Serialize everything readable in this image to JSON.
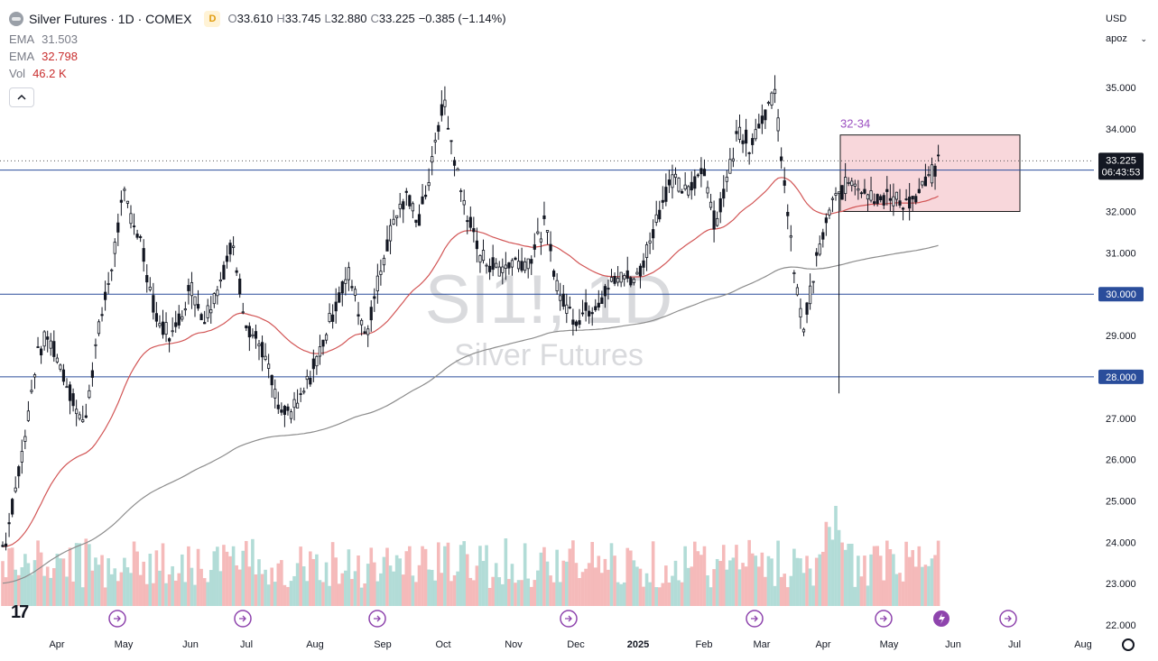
{
  "header": {
    "symbol_title": "Silver Futures · 1D · COMEX",
    "interval_badge": "D",
    "open_label": "O",
    "open": "33.610",
    "high_label": "H",
    "high": "33.745",
    "low_label": "L",
    "low": "32.880",
    "close_label": "C",
    "close": "33.225",
    "change": "−0.385 (−1.14%)"
  },
  "indicators": [
    {
      "name": "EMA",
      "value": "31.503"
    },
    {
      "name": "EMA",
      "value": "32.798"
    },
    {
      "name": "Vol",
      "value": "46.2 K"
    }
  ],
  "currency_select": "USD",
  "scale_select": "apoz",
  "watermark": {
    "symbol": "SI1!, 1D",
    "description": "Silver Futures"
  },
  "logo": "17",
  "colors": {
    "up": "#131722",
    "down": "#131722",
    "ema_fast": "#d25555",
    "ema_slow": "#8c8c8c",
    "hline": "#2a4d9b",
    "box_fill": "#f6c9cf",
    "box_stroke": "#1a1a1a",
    "vol_up": "#9fd3cd",
    "vol_down": "#f3a9a9",
    "box_label": "#9b4fc0"
  },
  "chart_data": {
    "type": "candlestick",
    "title": "Silver Futures · 1D · COMEX",
    "x_tick_labels": [
      "Apr",
      "May",
      "Jun",
      "Jul",
      "Aug",
      "Sep",
      "Oct",
      "Nov",
      "Dec",
      "2025",
      "Feb",
      "Mar",
      "Apr",
      "May",
      "Jun",
      "Jul",
      "Aug"
    ],
    "y_tick_labels": [
      "22.000",
      "23.000",
      "24.000",
      "25.000",
      "26.000",
      "27.000",
      "28.000",
      "29.000",
      "30.000",
      "31.000",
      "32.000",
      "33.000",
      "34.000",
      "35.000"
    ],
    "ylim": [
      21.85,
      36.2
    ],
    "horizontal_levels": [
      {
        "value": 33.0,
        "label": "33.000"
      },
      {
        "value": 30.0,
        "label": "30.000"
      },
      {
        "value": 28.0,
        "label": "28.000"
      }
    ],
    "last_price": {
      "value": 33.225,
      "label": "33.225",
      "countdown": "06:43:53"
    },
    "range_box": {
      "label": "32-34",
      "low": 32.0,
      "high": 33.85,
      "start": "Apr 2025",
      "end": "Jun 2025"
    },
    "price_path": [
      [
        "Mar",
        23.9
      ],
      [
        "Apr",
        25.2
      ],
      [
        "Apr",
        26.6
      ],
      [
        "Apr",
        28.4
      ],
      [
        "Apr",
        29.0
      ],
      [
        "Apr",
        28.5
      ],
      [
        "May",
        27.6
      ],
      [
        "May",
        26.8
      ],
      [
        "May",
        28.9
      ],
      [
        "May",
        30.5
      ],
      [
        "May",
        32.4
      ],
      [
        "Jun",
        31.3
      ],
      [
        "Jun",
        29.3
      ],
      [
        "Jun",
        29.0
      ],
      [
        "Jun",
        30.2
      ],
      [
        "Jul",
        29.4
      ],
      [
        "Jul",
        30.2
      ],
      [
        "Jul",
        31.2
      ],
      [
        "Jul",
        29.3
      ],
      [
        "Aug",
        28.6
      ],
      [
        "Aug",
        27.0
      ],
      [
        "Aug",
        27.3
      ],
      [
        "Aug",
        28.3
      ],
      [
        "Sep",
        29.5
      ],
      [
        "Sep",
        30.5
      ],
      [
        "Sep",
        29.0
      ],
      [
        "Sep",
        30.8
      ],
      [
        "Oct",
        31.9
      ],
      [
        "Oct",
        32.3
      ],
      [
        "Oct",
        31.8
      ],
      [
        "Oct",
        33.0
      ],
      [
        "Oct",
        34.7
      ],
      [
        "Nov",
        32.5
      ],
      [
        "Nov",
        31.0
      ],
      [
        "Nov",
        30.6
      ],
      [
        "Nov",
        30.8
      ],
      [
        "Dec",
        30.8
      ],
      [
        "Dec",
        31.7
      ],
      [
        "Dec",
        29.9
      ],
      [
        "Dec",
        29.4
      ],
      [
        "2025",
        29.8
      ],
      [
        "2025",
        30.4
      ],
      [
        "2025",
        30.4
      ],
      [
        "Feb",
        31.7
      ],
      [
        "Feb",
        32.8
      ],
      [
        "Feb",
        32.4
      ],
      [
        "Feb",
        33.1
      ],
      [
        "Mar",
        31.6
      ],
      [
        "Mar",
        32.8
      ],
      [
        "Mar",
        34.0
      ],
      [
        "Mar",
        33.6
      ],
      [
        "Mar",
        34.3
      ],
      [
        "Apr",
        34.8
      ],
      [
        "Apr",
        31.5
      ],
      [
        "Apr",
        29.1
      ],
      [
        "Apr",
        30.8
      ],
      [
        "Apr",
        32.1
      ],
      [
        "May",
        32.8
      ],
      [
        "May",
        32.4
      ],
      [
        "May",
        32.3
      ],
      [
        "May",
        32.2
      ],
      [
        "May",
        33.0
      ],
      [
        "Jun",
        33.225
      ]
    ],
    "ema_fast_label": "EMA 32.798",
    "ema_slow_label": "EMA 31.503",
    "volume_label": "Vol 46.2 K"
  }
}
